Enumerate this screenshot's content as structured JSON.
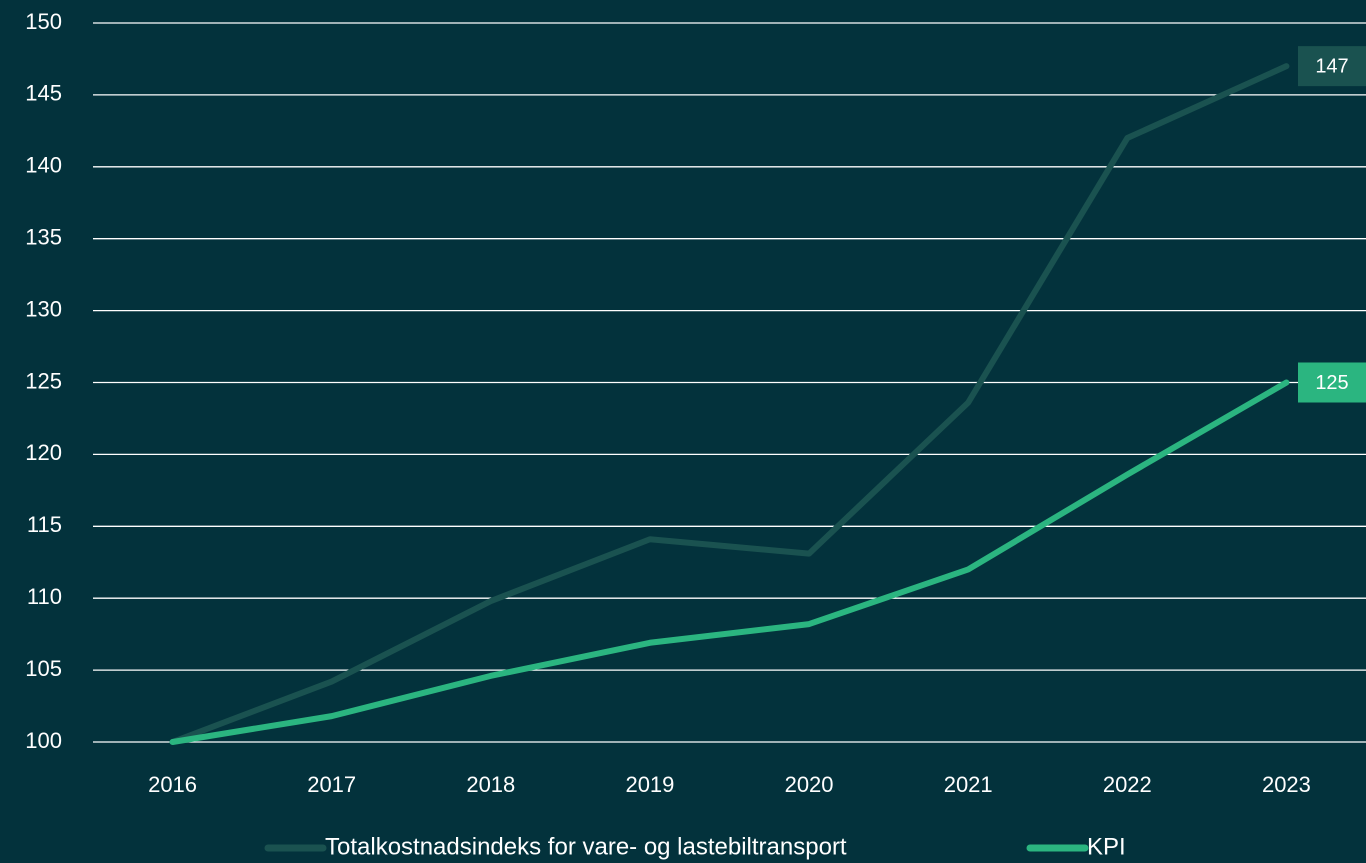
{
  "chart_data": {
    "type": "line",
    "categories": [
      "2016",
      "2017",
      "2018",
      "2019",
      "2020",
      "2021",
      "2022",
      "2023"
    ],
    "series": [
      {
        "name": "Totalkostnadsindeks for vare- og lastebiltransport",
        "color": "#1a5250",
        "values": [
          100,
          104.2,
          109.8,
          114.1,
          113.1,
          123.6,
          142,
          147
        ]
      },
      {
        "name": "KPI",
        "color": "#2bb580",
        "values": [
          100,
          101.8,
          104.6,
          106.9,
          108.2,
          112,
          118.6,
          125
        ]
      }
    ],
    "ylim": [
      100,
      150
    ],
    "yticks": [
      100,
      105,
      110,
      115,
      120,
      125,
      130,
      135,
      140,
      145,
      150
    ],
    "grid": true,
    "legend": "bottom"
  }
}
